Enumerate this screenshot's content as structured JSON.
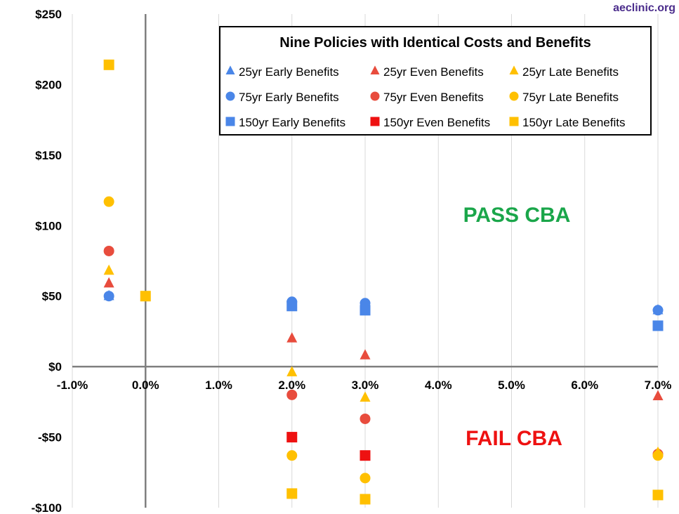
{
  "brand": "aeclinic.org",
  "region_labels": {
    "pass": "PASS CBA",
    "fail": "FAIL CBA",
    "pass_color": "#1aa64a",
    "fail_color": "#ee1111"
  },
  "chart_data": {
    "type": "scatter",
    "title": "Nine Policies with Identical Costs and Benefits",
    "xlabel": "",
    "ylabel": "",
    "xlim": [
      -0.01,
      0.07
    ],
    "ylim": [
      -100,
      250
    ],
    "x_ticks": [
      -0.01,
      0,
      0.01,
      0.02,
      0.03,
      0.04,
      0.05,
      0.06,
      0.07
    ],
    "x_tick_labels": [
      "-1.0%",
      "0.0%",
      "1.0%",
      "2.0%",
      "3.0%",
      "4.0%",
      "5.0%",
      "6.0%",
      "7.0%"
    ],
    "y_ticks": [
      -100,
      -50,
      0,
      50,
      100,
      150,
      200,
      250
    ],
    "y_tick_labels": [
      "-$100",
      "-$50",
      "$0",
      "$50",
      "$100",
      "$150",
      "$200",
      "$250"
    ],
    "grid": "vertical",
    "legend_position": "top-right",
    "series": [
      {
        "name": "25yr Early Benefits",
        "marker": "triangle",
        "color": "#4a86e8",
        "points": [
          [
            -0.005,
            50
          ],
          [
            0.02,
            45
          ],
          [
            0.03,
            43
          ],
          [
            0.07,
            40
          ]
        ]
      },
      {
        "name": "25yr Even Benefits",
        "marker": "triangle",
        "color": "#e84c3d",
        "points": [
          [
            -0.005,
            59
          ],
          [
            0.02,
            20
          ],
          [
            0.03,
            8
          ],
          [
            0.07,
            -21
          ]
        ]
      },
      {
        "name": "25yr Late Benefits",
        "marker": "triangle",
        "color": "#ffc000",
        "points": [
          [
            -0.005,
            68
          ],
          [
            0.02,
            -4
          ],
          [
            0.03,
            -22
          ],
          [
            0.07,
            -61
          ]
        ]
      },
      {
        "name": "75yr Early Benefits",
        "marker": "circle",
        "color": "#4a86e8",
        "points": [
          [
            -0.005,
            50
          ],
          [
            0.02,
            46
          ],
          [
            0.03,
            45
          ],
          [
            0.07,
            40
          ]
        ]
      },
      {
        "name": "75yr Even Benefits",
        "marker": "circle",
        "color": "#e84c3d",
        "points": [
          [
            -0.005,
            82
          ],
          [
            0.02,
            -20
          ],
          [
            0.03,
            -37
          ],
          [
            0.07,
            -62
          ]
        ]
      },
      {
        "name": "75yr Late Benefits",
        "marker": "circle",
        "color": "#ffc000",
        "points": [
          [
            -0.005,
            117
          ],
          [
            0.02,
            -63
          ],
          [
            0.03,
            -79
          ],
          [
            0.07,
            -63
          ]
        ]
      },
      {
        "name": "150yr Early Benefits",
        "marker": "square",
        "color": "#4a86e8",
        "points": [
          [
            0.02,
            43
          ],
          [
            0.03,
            40
          ],
          [
            0.07,
            29
          ]
        ]
      },
      {
        "name": "150yr Even Benefits",
        "marker": "square",
        "color": "#ee1111",
        "points": [
          [
            0.02,
            -50
          ],
          [
            0.03,
            -63
          ]
        ]
      },
      {
        "name": "150yr Late Benefits",
        "marker": "square",
        "color": "#ffc000",
        "points": [
          [
            -0.005,
            214
          ],
          [
            0,
            50
          ],
          [
            0.02,
            -90
          ],
          [
            0.03,
            -94
          ],
          [
            0.07,
            -91
          ]
        ]
      }
    ]
  }
}
